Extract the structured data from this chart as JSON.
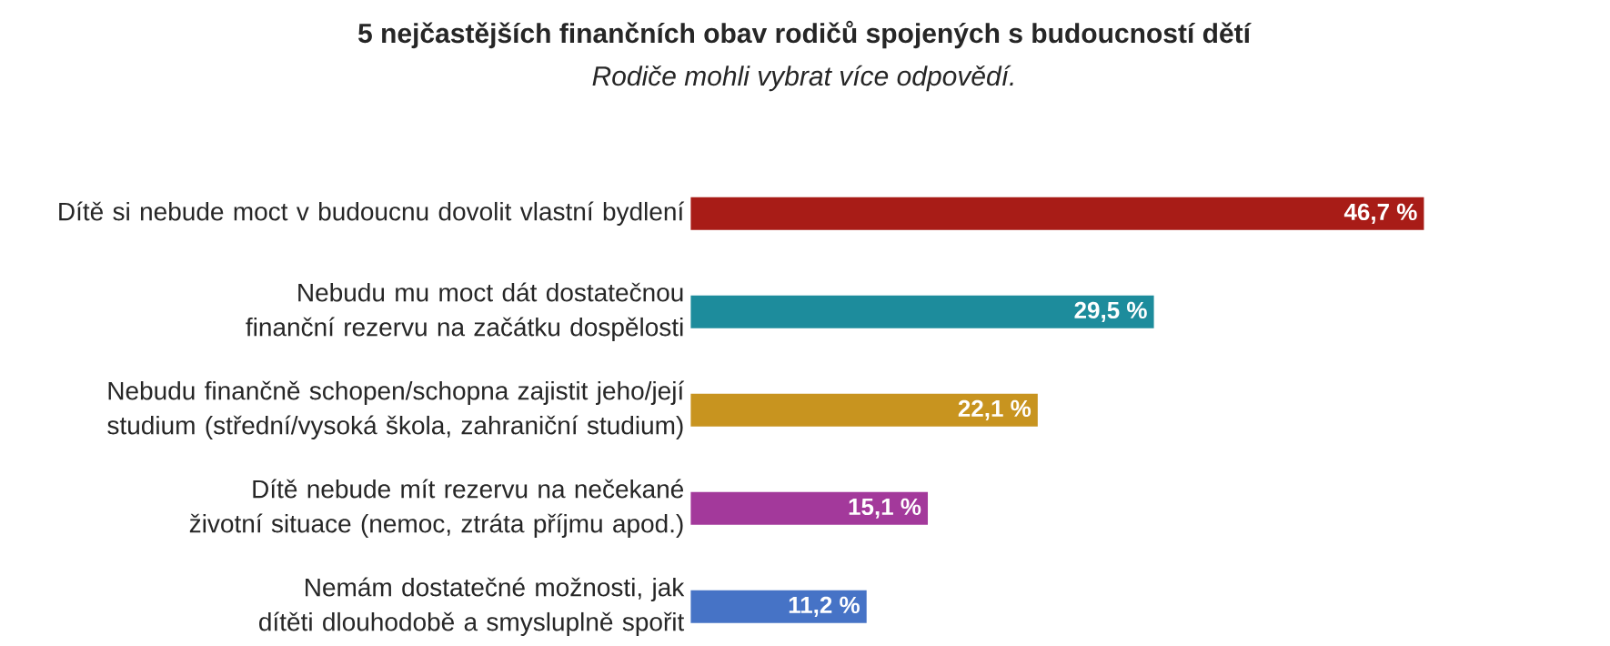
{
  "chart_data": {
    "type": "bar",
    "orientation": "horizontal",
    "title": "5 nejčastějších finančních obav rodičů spojených s budoucností dětí",
    "subtitle": "Rodiče mohli vybrat více odpovědí.",
    "categories": [
      "Dítě si nebude moct v budoucnu dovolit vlastní bydlení",
      "Nebudu mu moct dát dostatečnou finanční rezervu na začátku dospělosti",
      "Nebudu finančně schopen/schopna zajistit jeho/její studium (střední/vysoká škola, zahraniční studium)",
      "Dítě nebude mít rezervu na nečekané životní situace (nemoc, ztráta příjmu apod.)",
      "Nemám dostatečné možnosti, jak dítěti dlouhodobě a smysluplně spořit"
    ],
    "values": [
      46.7,
      29.5,
      22.1,
      15.1,
      11.2
    ],
    "colors": [
      "#a81c17",
      "#1d8c9c",
      "#c8941f",
      "#a3399b",
      "#4673c6"
    ],
    "value_labels": [
      "46,7 %",
      "29,5 %",
      "22,1 %",
      "15,1 %",
      "11,2 %"
    ]
  }
}
